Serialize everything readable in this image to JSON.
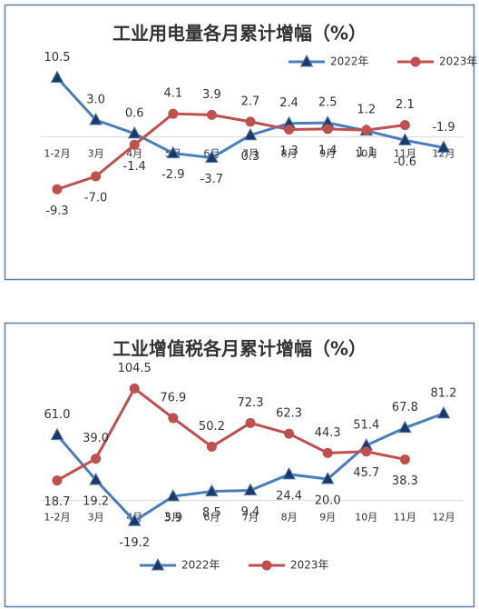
{
  "chart_data": [
    {
      "type": "line",
      "title": "工业用电量各月累计增幅（%）",
      "categories": [
        "1-2月",
        "3月",
        "4月",
        "5月",
        "6月",
        "7月",
        "8月",
        "9月",
        "10月",
        "11月",
        "12月"
      ],
      "series": [
        {
          "name": "2022年",
          "color": "#4a7ebb",
          "marker_color": "#1f3864",
          "marker": "triangle",
          "values": [
            10.5,
            3.0,
            0.6,
            -2.9,
            -3.7,
            0.3,
            2.4,
            2.5,
            1.1,
            -0.6,
            -1.9
          ],
          "value_labels": [
            "10.5",
            "3.0",
            "0.6",
            "-2.9",
            "-3.7",
            "0.3",
            "2.4",
            "2.5",
            "1.1",
            "-0.6",
            "-1.9"
          ]
        },
        {
          "name": "2023年",
          "color": "#c0504d",
          "marker_color": "#c0504d",
          "marker": "circle",
          "values": [
            -9.3,
            -7.0,
            -1.4,
            4.1,
            3.9,
            2.7,
            1.3,
            1.4,
            1.2,
            2.1,
            null
          ],
          "value_labels": [
            "-9.3",
            "-7.0",
            "-1.4",
            "4.1",
            "3.9",
            "2.7",
            "1.3",
            "1.4",
            "1.2",
            "2.1",
            null
          ]
        }
      ],
      "ylim": [
        -14,
        13
      ],
      "legend": "top-right"
    },
    {
      "type": "line",
      "title": "工业增值税各月累计增幅（%）",
      "categories": [
        "1-2月",
        "3月",
        "4月",
        "5月",
        "6月",
        "7月",
        "8月",
        "9月",
        "10月",
        "11月",
        "12月"
      ],
      "series": [
        {
          "name": "2022年",
          "color": "#4a7ebb",
          "marker_color": "#1f3864",
          "marker": "triangle",
          "values": [
            61.0,
            19.2,
            -19.2,
            3.9,
            8.5,
            9.4,
            24.4,
            20.0,
            51.4,
            67.8,
            81.2
          ],
          "value_labels": [
            "61.0",
            "19.2",
            "-19.2",
            "3.9",
            "8.5",
            "9.4",
            "24.4",
            "20.0",
            "51.4",
            "67.8",
            "81.2"
          ]
        },
        {
          "name": "2023年",
          "color": "#c0504d",
          "marker_color": "#c0504d",
          "marker": "circle",
          "values": [
            18.7,
            39.0,
            104.5,
            76.9,
            50.2,
            72.3,
            62.3,
            44.3,
            45.7,
            38.3,
            null
          ],
          "value_labels": [
            "18.7",
            "39.0",
            "104.5",
            "76.9",
            "50.2",
            "72.3",
            "62.3",
            "44.3",
            "45.7",
            "38.3",
            null
          ]
        }
      ],
      "ylim": [
        -30,
        115
      ],
      "legend": "bottom"
    }
  ]
}
